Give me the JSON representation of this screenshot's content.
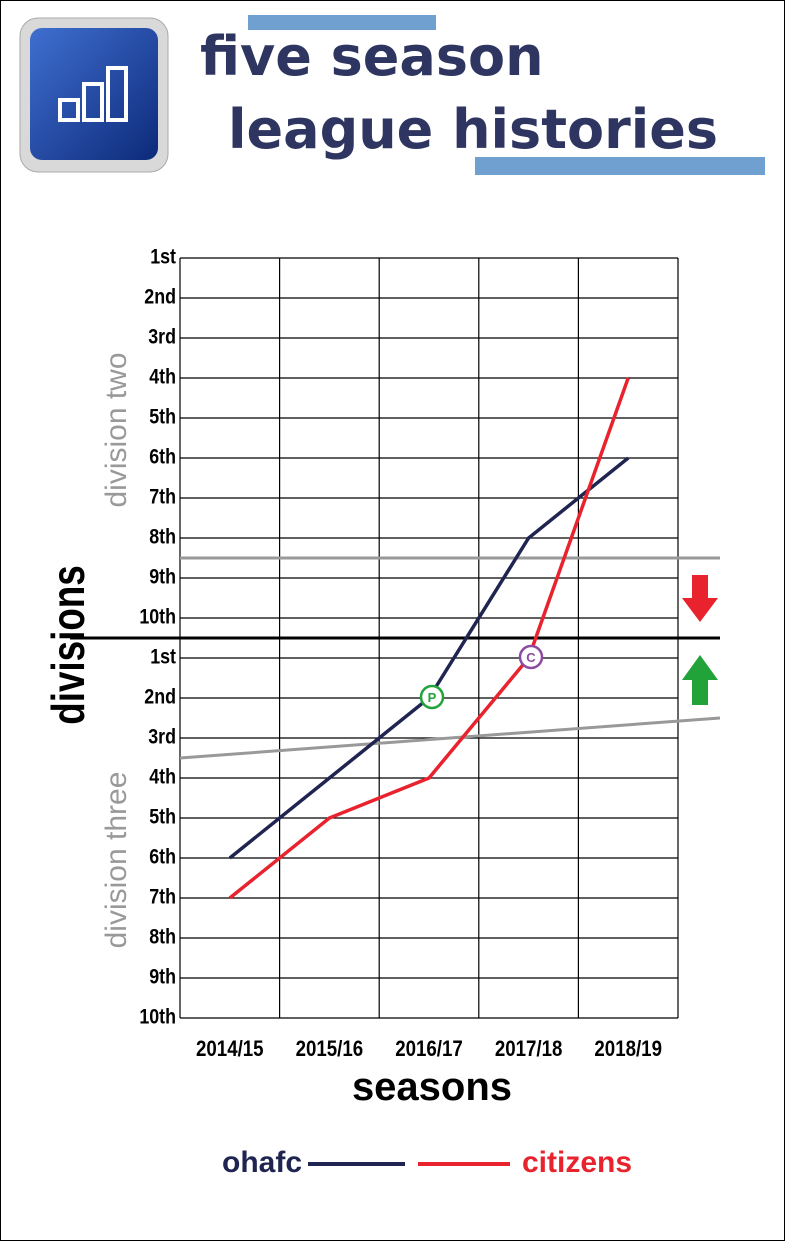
{
  "chart_data": {
    "type": "line",
    "title": [
      "five season",
      "league histories"
    ],
    "x_label": "seasons",
    "y_label": "divisions",
    "division_labels": [
      "division two",
      "division three"
    ],
    "annotations": [
      "P",
      "C"
    ],
    "categories": [
      "2014/15",
      "2015/16",
      "2016/17",
      "2017/18",
      "2018/19"
    ],
    "series": [
      {
        "name": "ohafc",
        "color": "#1f2550",
        "values": [
          16,
          14,
          12,
          8,
          6
        ]
      },
      {
        "name": "citizens",
        "color": "#e8232e",
        "values": [
          17,
          15,
          14,
          11,
          4
        ]
      }
    ],
    "ylim": [
      1,
      20
    ],
    "yticks": [
      {
        "value": 1,
        "label": "1st"
      },
      {
        "value": 2,
        "label": "2nd"
      },
      {
        "value": 3,
        "label": "3rd"
      },
      {
        "value": 4,
        "label": "4th"
      },
      {
        "value": 5,
        "label": "5th"
      },
      {
        "value": 6,
        "label": "6th"
      },
      {
        "value": 7,
        "label": "7th"
      },
      {
        "value": 8,
        "label": "8th"
      },
      {
        "value": 9,
        "label": "9th"
      },
      {
        "value": 10,
        "label": "10th"
      },
      {
        "value": 11,
        "label": "1st"
      },
      {
        "value": 12,
        "label": "2nd"
      },
      {
        "value": 13,
        "label": "3rd"
      },
      {
        "value": 14,
        "label": "4th"
      },
      {
        "value": 15,
        "label": "5th"
      },
      {
        "value": 16,
        "label": "6th"
      },
      {
        "value": 17,
        "label": "7th"
      },
      {
        "value": 18,
        "label": "8th"
      },
      {
        "value": 19,
        "label": "9th"
      },
      {
        "value": 20,
        "label": "10th"
      }
    ],
    "grid": true
  }
}
